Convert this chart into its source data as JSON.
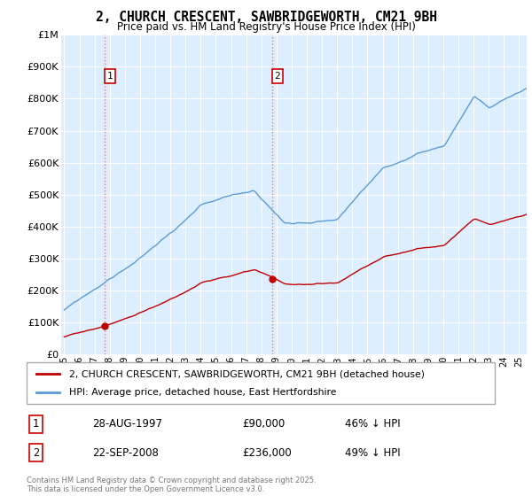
{
  "title": "2, CHURCH CRESCENT, SAWBRIDGEWORTH, CM21 9BH",
  "subtitle": "Price paid vs. HM Land Registry's House Price Index (HPI)",
  "legend_line1": "2, CHURCH CRESCENT, SAWBRIDGEWORTH, CM21 9BH (detached house)",
  "legend_line2": "HPI: Average price, detached house, East Hertfordshire",
  "annotation1_label": "1",
  "annotation1_date": "28-AUG-1997",
  "annotation1_price": "£90,000",
  "annotation1_hpi": "46% ↓ HPI",
  "annotation2_label": "2",
  "annotation2_date": "22-SEP-2008",
  "annotation2_price": "£236,000",
  "annotation2_hpi": "49% ↓ HPI",
  "footer": "Contains HM Land Registry data © Crown copyright and database right 2025.\nThis data is licensed under the Open Government Licence v3.0.",
  "hpi_color": "#5b9bd5",
  "price_color": "#c00000",
  "vline_color": "#e87878",
  "bg_color": "#ddeeff",
  "ylim_max": 1000000,
  "sale1_year": 1997.65,
  "sale1_price": 90000,
  "sale2_year": 2008.72,
  "sale2_price": 236000,
  "xlim_min": 1994.8,
  "xlim_max": 2025.5
}
